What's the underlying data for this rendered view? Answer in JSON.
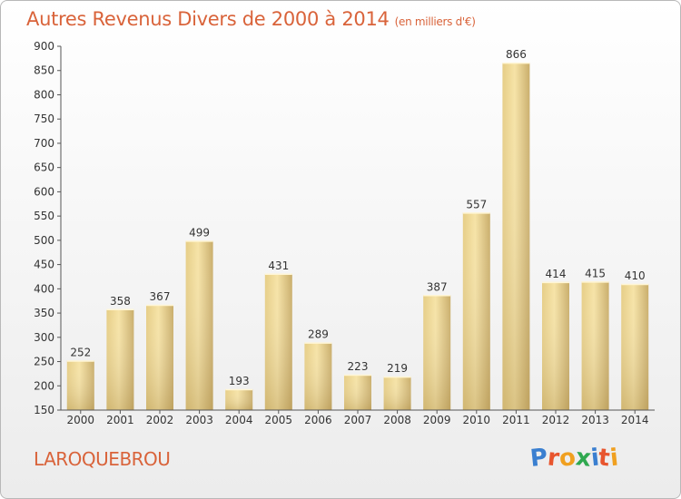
{
  "header": {
    "title": "Autres Revenus Divers de 2000 à 2014",
    "subtitle": "(en milliers d'€)"
  },
  "footer": {
    "commune": "LAROQUEBROU",
    "logo_letters": [
      {
        "ch": "P",
        "color": "#3a7fd0"
      },
      {
        "ch": "r",
        "color": "#e8552e"
      },
      {
        "ch": "o",
        "color": "#f0a020"
      },
      {
        "ch": "x",
        "color": "#2fa84f"
      },
      {
        "ch": "i",
        "color": "#3a7fd0"
      },
      {
        "ch": "t",
        "color": "#e8552e"
      },
      {
        "ch": "i",
        "color": "#f0a020"
      }
    ]
  },
  "colors": {
    "bar_light": "#f5e0a0",
    "bar_dark": "#c9ad6a",
    "title": "#d9633a"
  },
  "chart_data": {
    "type": "bar",
    "title": "Autres Revenus Divers de 2000 à 2014",
    "subtitle": "(en milliers d'€)",
    "categories": [
      "2000",
      "2001",
      "2002",
      "2003",
      "2004",
      "2005",
      "2006",
      "2007",
      "2008",
      "2009",
      "2010",
      "2011",
      "2012",
      "2013",
      "2014"
    ],
    "values": [
      252,
      358,
      367,
      499,
      193,
      431,
      289,
      223,
      219,
      387,
      557,
      866,
      414,
      415,
      410
    ],
    "ylim": [
      150,
      900
    ],
    "yticks": [
      150,
      200,
      250,
      300,
      350,
      400,
      450,
      500,
      550,
      600,
      650,
      700,
      750,
      800,
      850,
      900
    ],
    "grid": false,
    "xlabel": "",
    "ylabel": ""
  }
}
